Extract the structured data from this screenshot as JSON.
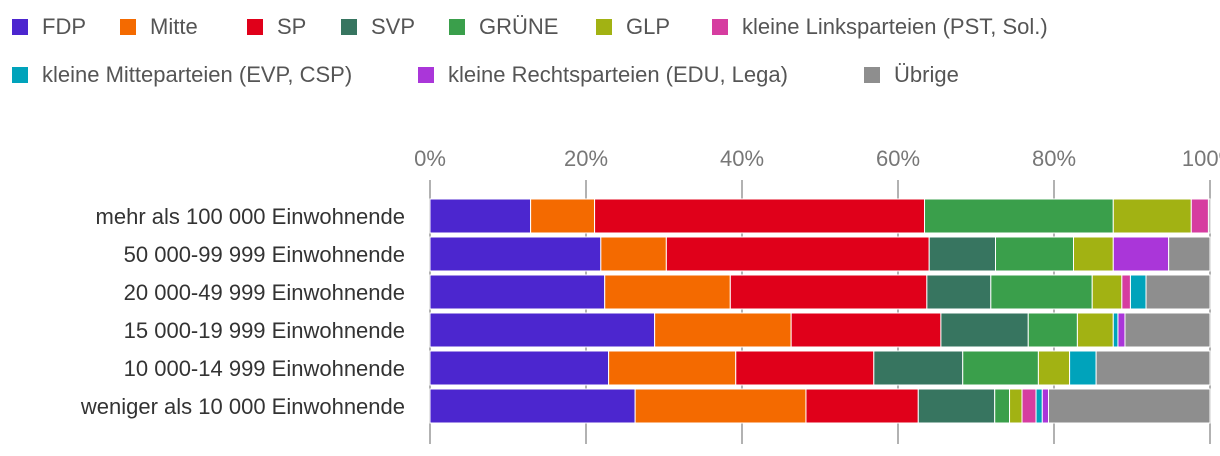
{
  "chart_data": {
    "type": "bar",
    "orientation": "horizontal",
    "stacked": true,
    "title": "",
    "xlabel": "",
    "ylabel": "",
    "xlim": [
      0,
      100
    ],
    "ticks": [
      "0%",
      "20%",
      "40%",
      "60%",
      "80%",
      "100%"
    ],
    "tick_values": [
      0,
      20,
      40,
      60,
      80,
      100
    ],
    "legend_position": "top",
    "grid": true,
    "categories": [
      "mehr als 100 000 Einwohnende",
      "50 000-99 999 Einwohnende",
      "20 000-49 999 Einwohnende",
      "15 000-19 999 Einwohnende",
      "10 000-14 999 Einwohnende",
      "weniger als 10 000 Einwohnende"
    ],
    "series": [
      {
        "name": "FDP",
        "color": "#4c26cf",
        "values": [
          12.9,
          21.9,
          22.4,
          28.8,
          22.9,
          26.3
        ]
      },
      {
        "name": "Mitte",
        "color": "#f46a00",
        "values": [
          8.2,
          8.4,
          16.1,
          17.5,
          16.3,
          21.9
        ]
      },
      {
        "name": "SP",
        "color": "#e0001a",
        "values": [
          42.3,
          33.7,
          25.2,
          19.2,
          17.7,
          14.4
        ]
      },
      {
        "name": "SVP",
        "color": "#377560",
        "values": [
          0,
          8.5,
          8.2,
          11.2,
          11.4,
          9.8
        ]
      },
      {
        "name": "GRÜNE",
        "color": "#3a9f4b",
        "values": [
          24.2,
          10.0,
          13.0,
          6.3,
          9.7,
          1.9
        ]
      },
      {
        "name": "GLP",
        "color": "#a2b213",
        "values": [
          10.0,
          5.1,
          3.8,
          4.6,
          4.0,
          1.6
        ]
      },
      {
        "name": "kleine Linksparteien (PST, Sol.)",
        "color": "#d63da0",
        "values": [
          2.2,
          0,
          1.1,
          0,
          0,
          1.8
        ]
      },
      {
        "name": "kleine Mitteparteien (EVP, CSP)",
        "color": "#00a3bb",
        "values": [
          0,
          0,
          2.0,
          0.6,
          3.4,
          0.8
        ]
      },
      {
        "name": "kleine Rechtsparteien (EDU, Lega)",
        "color": "#aa36d9",
        "values": [
          0,
          7.1,
          0,
          0.9,
          0,
          0.8
        ]
      },
      {
        "name": "Übrige",
        "color": "#8e8e8e",
        "values": [
          0.2,
          5.3,
          8.2,
          10.9,
          14.6,
          20.7
        ]
      }
    ]
  }
}
